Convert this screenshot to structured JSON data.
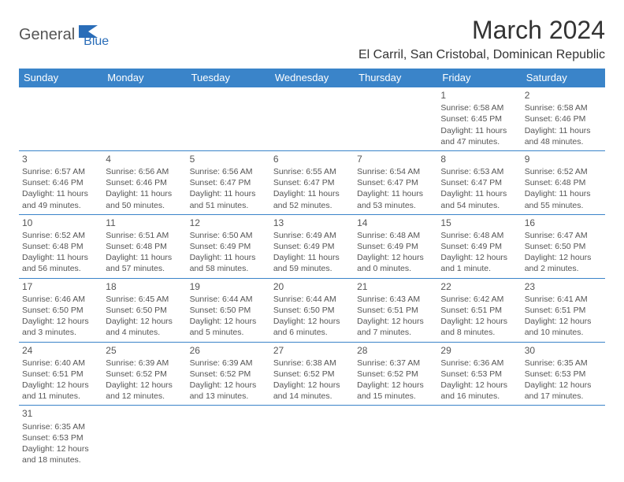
{
  "logo": {
    "part1": "General",
    "part2": "Blue"
  },
  "title": "March 2024",
  "subtitle": "El Carril, San Cristobal, Dominican Republic",
  "colors": {
    "header_bg": "#3a84c9",
    "header_fg": "#ffffff",
    "border": "#3a84c9",
    "logo_blue": "#2a6db8",
    "logo_gray": "#555"
  },
  "day_headers": [
    "Sunday",
    "Monday",
    "Tuesday",
    "Wednesday",
    "Thursday",
    "Friday",
    "Saturday"
  ],
  "weeks": [
    [
      {
        "day": "",
        "sunrise": "",
        "sunset": "",
        "daylight": ""
      },
      {
        "day": "",
        "sunrise": "",
        "sunset": "",
        "daylight": ""
      },
      {
        "day": "",
        "sunrise": "",
        "sunset": "",
        "daylight": ""
      },
      {
        "day": "",
        "sunrise": "",
        "sunset": "",
        "daylight": ""
      },
      {
        "day": "",
        "sunrise": "",
        "sunset": "",
        "daylight": ""
      },
      {
        "day": "1",
        "sunrise": "Sunrise: 6:58 AM",
        "sunset": "Sunset: 6:45 PM",
        "daylight": "Daylight: 11 hours and 47 minutes."
      },
      {
        "day": "2",
        "sunrise": "Sunrise: 6:58 AM",
        "sunset": "Sunset: 6:46 PM",
        "daylight": "Daylight: 11 hours and 48 minutes."
      }
    ],
    [
      {
        "day": "3",
        "sunrise": "Sunrise: 6:57 AM",
        "sunset": "Sunset: 6:46 PM",
        "daylight": "Daylight: 11 hours and 49 minutes."
      },
      {
        "day": "4",
        "sunrise": "Sunrise: 6:56 AM",
        "sunset": "Sunset: 6:46 PM",
        "daylight": "Daylight: 11 hours and 50 minutes."
      },
      {
        "day": "5",
        "sunrise": "Sunrise: 6:56 AM",
        "sunset": "Sunset: 6:47 PM",
        "daylight": "Daylight: 11 hours and 51 minutes."
      },
      {
        "day": "6",
        "sunrise": "Sunrise: 6:55 AM",
        "sunset": "Sunset: 6:47 PM",
        "daylight": "Daylight: 11 hours and 52 minutes."
      },
      {
        "day": "7",
        "sunrise": "Sunrise: 6:54 AM",
        "sunset": "Sunset: 6:47 PM",
        "daylight": "Daylight: 11 hours and 53 minutes."
      },
      {
        "day": "8",
        "sunrise": "Sunrise: 6:53 AM",
        "sunset": "Sunset: 6:47 PM",
        "daylight": "Daylight: 11 hours and 54 minutes."
      },
      {
        "day": "9",
        "sunrise": "Sunrise: 6:52 AM",
        "sunset": "Sunset: 6:48 PM",
        "daylight": "Daylight: 11 hours and 55 minutes."
      }
    ],
    [
      {
        "day": "10",
        "sunrise": "Sunrise: 6:52 AM",
        "sunset": "Sunset: 6:48 PM",
        "daylight": "Daylight: 11 hours and 56 minutes."
      },
      {
        "day": "11",
        "sunrise": "Sunrise: 6:51 AM",
        "sunset": "Sunset: 6:48 PM",
        "daylight": "Daylight: 11 hours and 57 minutes."
      },
      {
        "day": "12",
        "sunrise": "Sunrise: 6:50 AM",
        "sunset": "Sunset: 6:49 PM",
        "daylight": "Daylight: 11 hours and 58 minutes."
      },
      {
        "day": "13",
        "sunrise": "Sunrise: 6:49 AM",
        "sunset": "Sunset: 6:49 PM",
        "daylight": "Daylight: 11 hours and 59 minutes."
      },
      {
        "day": "14",
        "sunrise": "Sunrise: 6:48 AM",
        "sunset": "Sunset: 6:49 PM",
        "daylight": "Daylight: 12 hours and 0 minutes."
      },
      {
        "day": "15",
        "sunrise": "Sunrise: 6:48 AM",
        "sunset": "Sunset: 6:49 PM",
        "daylight": "Daylight: 12 hours and 1 minute."
      },
      {
        "day": "16",
        "sunrise": "Sunrise: 6:47 AM",
        "sunset": "Sunset: 6:50 PM",
        "daylight": "Daylight: 12 hours and 2 minutes."
      }
    ],
    [
      {
        "day": "17",
        "sunrise": "Sunrise: 6:46 AM",
        "sunset": "Sunset: 6:50 PM",
        "daylight": "Daylight: 12 hours and 3 minutes."
      },
      {
        "day": "18",
        "sunrise": "Sunrise: 6:45 AM",
        "sunset": "Sunset: 6:50 PM",
        "daylight": "Daylight: 12 hours and 4 minutes."
      },
      {
        "day": "19",
        "sunrise": "Sunrise: 6:44 AM",
        "sunset": "Sunset: 6:50 PM",
        "daylight": "Daylight: 12 hours and 5 minutes."
      },
      {
        "day": "20",
        "sunrise": "Sunrise: 6:44 AM",
        "sunset": "Sunset: 6:50 PM",
        "daylight": "Daylight: 12 hours and 6 minutes."
      },
      {
        "day": "21",
        "sunrise": "Sunrise: 6:43 AM",
        "sunset": "Sunset: 6:51 PM",
        "daylight": "Daylight: 12 hours and 7 minutes."
      },
      {
        "day": "22",
        "sunrise": "Sunrise: 6:42 AM",
        "sunset": "Sunset: 6:51 PM",
        "daylight": "Daylight: 12 hours and 8 minutes."
      },
      {
        "day": "23",
        "sunrise": "Sunrise: 6:41 AM",
        "sunset": "Sunset: 6:51 PM",
        "daylight": "Daylight: 12 hours and 10 minutes."
      }
    ],
    [
      {
        "day": "24",
        "sunrise": "Sunrise: 6:40 AM",
        "sunset": "Sunset: 6:51 PM",
        "daylight": "Daylight: 12 hours and 11 minutes."
      },
      {
        "day": "25",
        "sunrise": "Sunrise: 6:39 AM",
        "sunset": "Sunset: 6:52 PM",
        "daylight": "Daylight: 12 hours and 12 minutes."
      },
      {
        "day": "26",
        "sunrise": "Sunrise: 6:39 AM",
        "sunset": "Sunset: 6:52 PM",
        "daylight": "Daylight: 12 hours and 13 minutes."
      },
      {
        "day": "27",
        "sunrise": "Sunrise: 6:38 AM",
        "sunset": "Sunset: 6:52 PM",
        "daylight": "Daylight: 12 hours and 14 minutes."
      },
      {
        "day": "28",
        "sunrise": "Sunrise: 6:37 AM",
        "sunset": "Sunset: 6:52 PM",
        "daylight": "Daylight: 12 hours and 15 minutes."
      },
      {
        "day": "29",
        "sunrise": "Sunrise: 6:36 AM",
        "sunset": "Sunset: 6:53 PM",
        "daylight": "Daylight: 12 hours and 16 minutes."
      },
      {
        "day": "30",
        "sunrise": "Sunrise: 6:35 AM",
        "sunset": "Sunset: 6:53 PM",
        "daylight": "Daylight: 12 hours and 17 minutes."
      }
    ],
    [
      {
        "day": "31",
        "sunrise": "Sunrise: 6:35 AM",
        "sunset": "Sunset: 6:53 PM",
        "daylight": "Daylight: 12 hours and 18 minutes."
      },
      {
        "day": "",
        "sunrise": "",
        "sunset": "",
        "daylight": ""
      },
      {
        "day": "",
        "sunrise": "",
        "sunset": "",
        "daylight": ""
      },
      {
        "day": "",
        "sunrise": "",
        "sunset": "",
        "daylight": ""
      },
      {
        "day": "",
        "sunrise": "",
        "sunset": "",
        "daylight": ""
      },
      {
        "day": "",
        "sunrise": "",
        "sunset": "",
        "daylight": ""
      },
      {
        "day": "",
        "sunrise": "",
        "sunset": "",
        "daylight": ""
      }
    ]
  ]
}
